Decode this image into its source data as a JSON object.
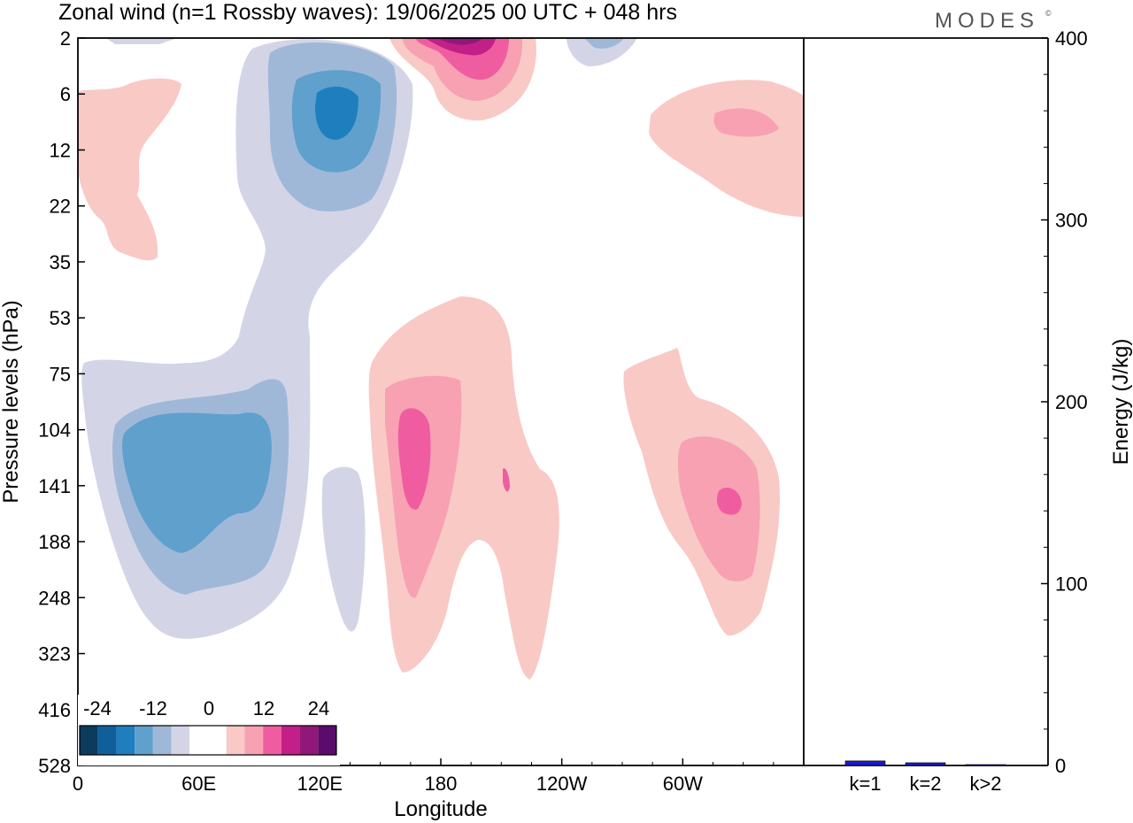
{
  "logo_text": "MODES",
  "logo_mark": "©",
  "chart_data": [
    {
      "type": "heatmap",
      "title": "Zonal wind (n=1 Rossby waves):  19/06/2025  00 UTC  + 048 hrs",
      "xlabel": "Longitude",
      "ylabel": "Pressure levels (hPa)",
      "x_ticks": [
        "0",
        "60E",
        "120E",
        "180",
        "120W",
        "60W"
      ],
      "x_tick_degrees": [
        0,
        60,
        120,
        180,
        240,
        300
      ],
      "xlim_degrees": [
        0,
        360
      ],
      "y_ticks": [
        "2",
        "6",
        "12",
        "22",
        "35",
        "53",
        "75",
        "104",
        "141",
        "188",
        "248",
        "323",
        "416",
        "528"
      ],
      "colorbar": {
        "labels": [
          "-24",
          "-12",
          "0",
          "12",
          "24"
        ],
        "levels": [
          -27,
          -24,
          -21,
          -18,
          -15,
          -12,
          -9,
          -6,
          -3,
          0,
          3,
          6,
          9,
          12,
          15,
          18,
          21,
          24,
          27
        ],
        "colors": [
          "#0d3b5e",
          "#0e5f9a",
          "#1f7fbe",
          "#5fa0cd",
          "#a0b8d8",
          "#d3d5e7",
          "#ffffff",
          "#ffffff",
          "#f9c9c6",
          "#f7a1b3",
          "#ef5da0",
          "#c21f88",
          "#911878",
          "#5b0b6c"
        ]
      },
      "features": [
        {
          "sign": "negative",
          "peak": -18,
          "lon_center": 50,
          "pressure_center": "141"
        },
        {
          "sign": "negative",
          "peak": -18,
          "lon_center": 128,
          "pressure_center": "9"
        },
        {
          "sign": "negative",
          "peak": -9,
          "lon_center": 132,
          "pressure_center": "188"
        },
        {
          "sign": "negative",
          "peak": -9,
          "lon_center": 258,
          "pressure_center": "2"
        },
        {
          "sign": "positive",
          "peak": 27,
          "lon_center": 190,
          "pressure_center": "2"
        },
        {
          "sign": "positive",
          "peak": 12,
          "lon_center": 168,
          "pressure_center": "130"
        },
        {
          "sign": "positive",
          "peak": 12,
          "lon_center": 323,
          "pressure_center": "141"
        },
        {
          "sign": "positive",
          "peak": 9,
          "lon_center": 337,
          "pressure_center": "9"
        },
        {
          "sign": "positive",
          "peak": 6,
          "lon_center": 22,
          "pressure_center": "12"
        }
      ]
    },
    {
      "type": "bar",
      "ylabel": "Energy (J/kg)",
      "categories": [
        "k=1",
        "k=2",
        "k>2"
      ],
      "values": [
        2.5,
        1.5,
        0.5
      ],
      "ylim": [
        0,
        400
      ],
      "y_ticks": [
        "0",
        "100",
        "200",
        "300",
        "400"
      ],
      "bar_color": "#1a1acc"
    }
  ]
}
